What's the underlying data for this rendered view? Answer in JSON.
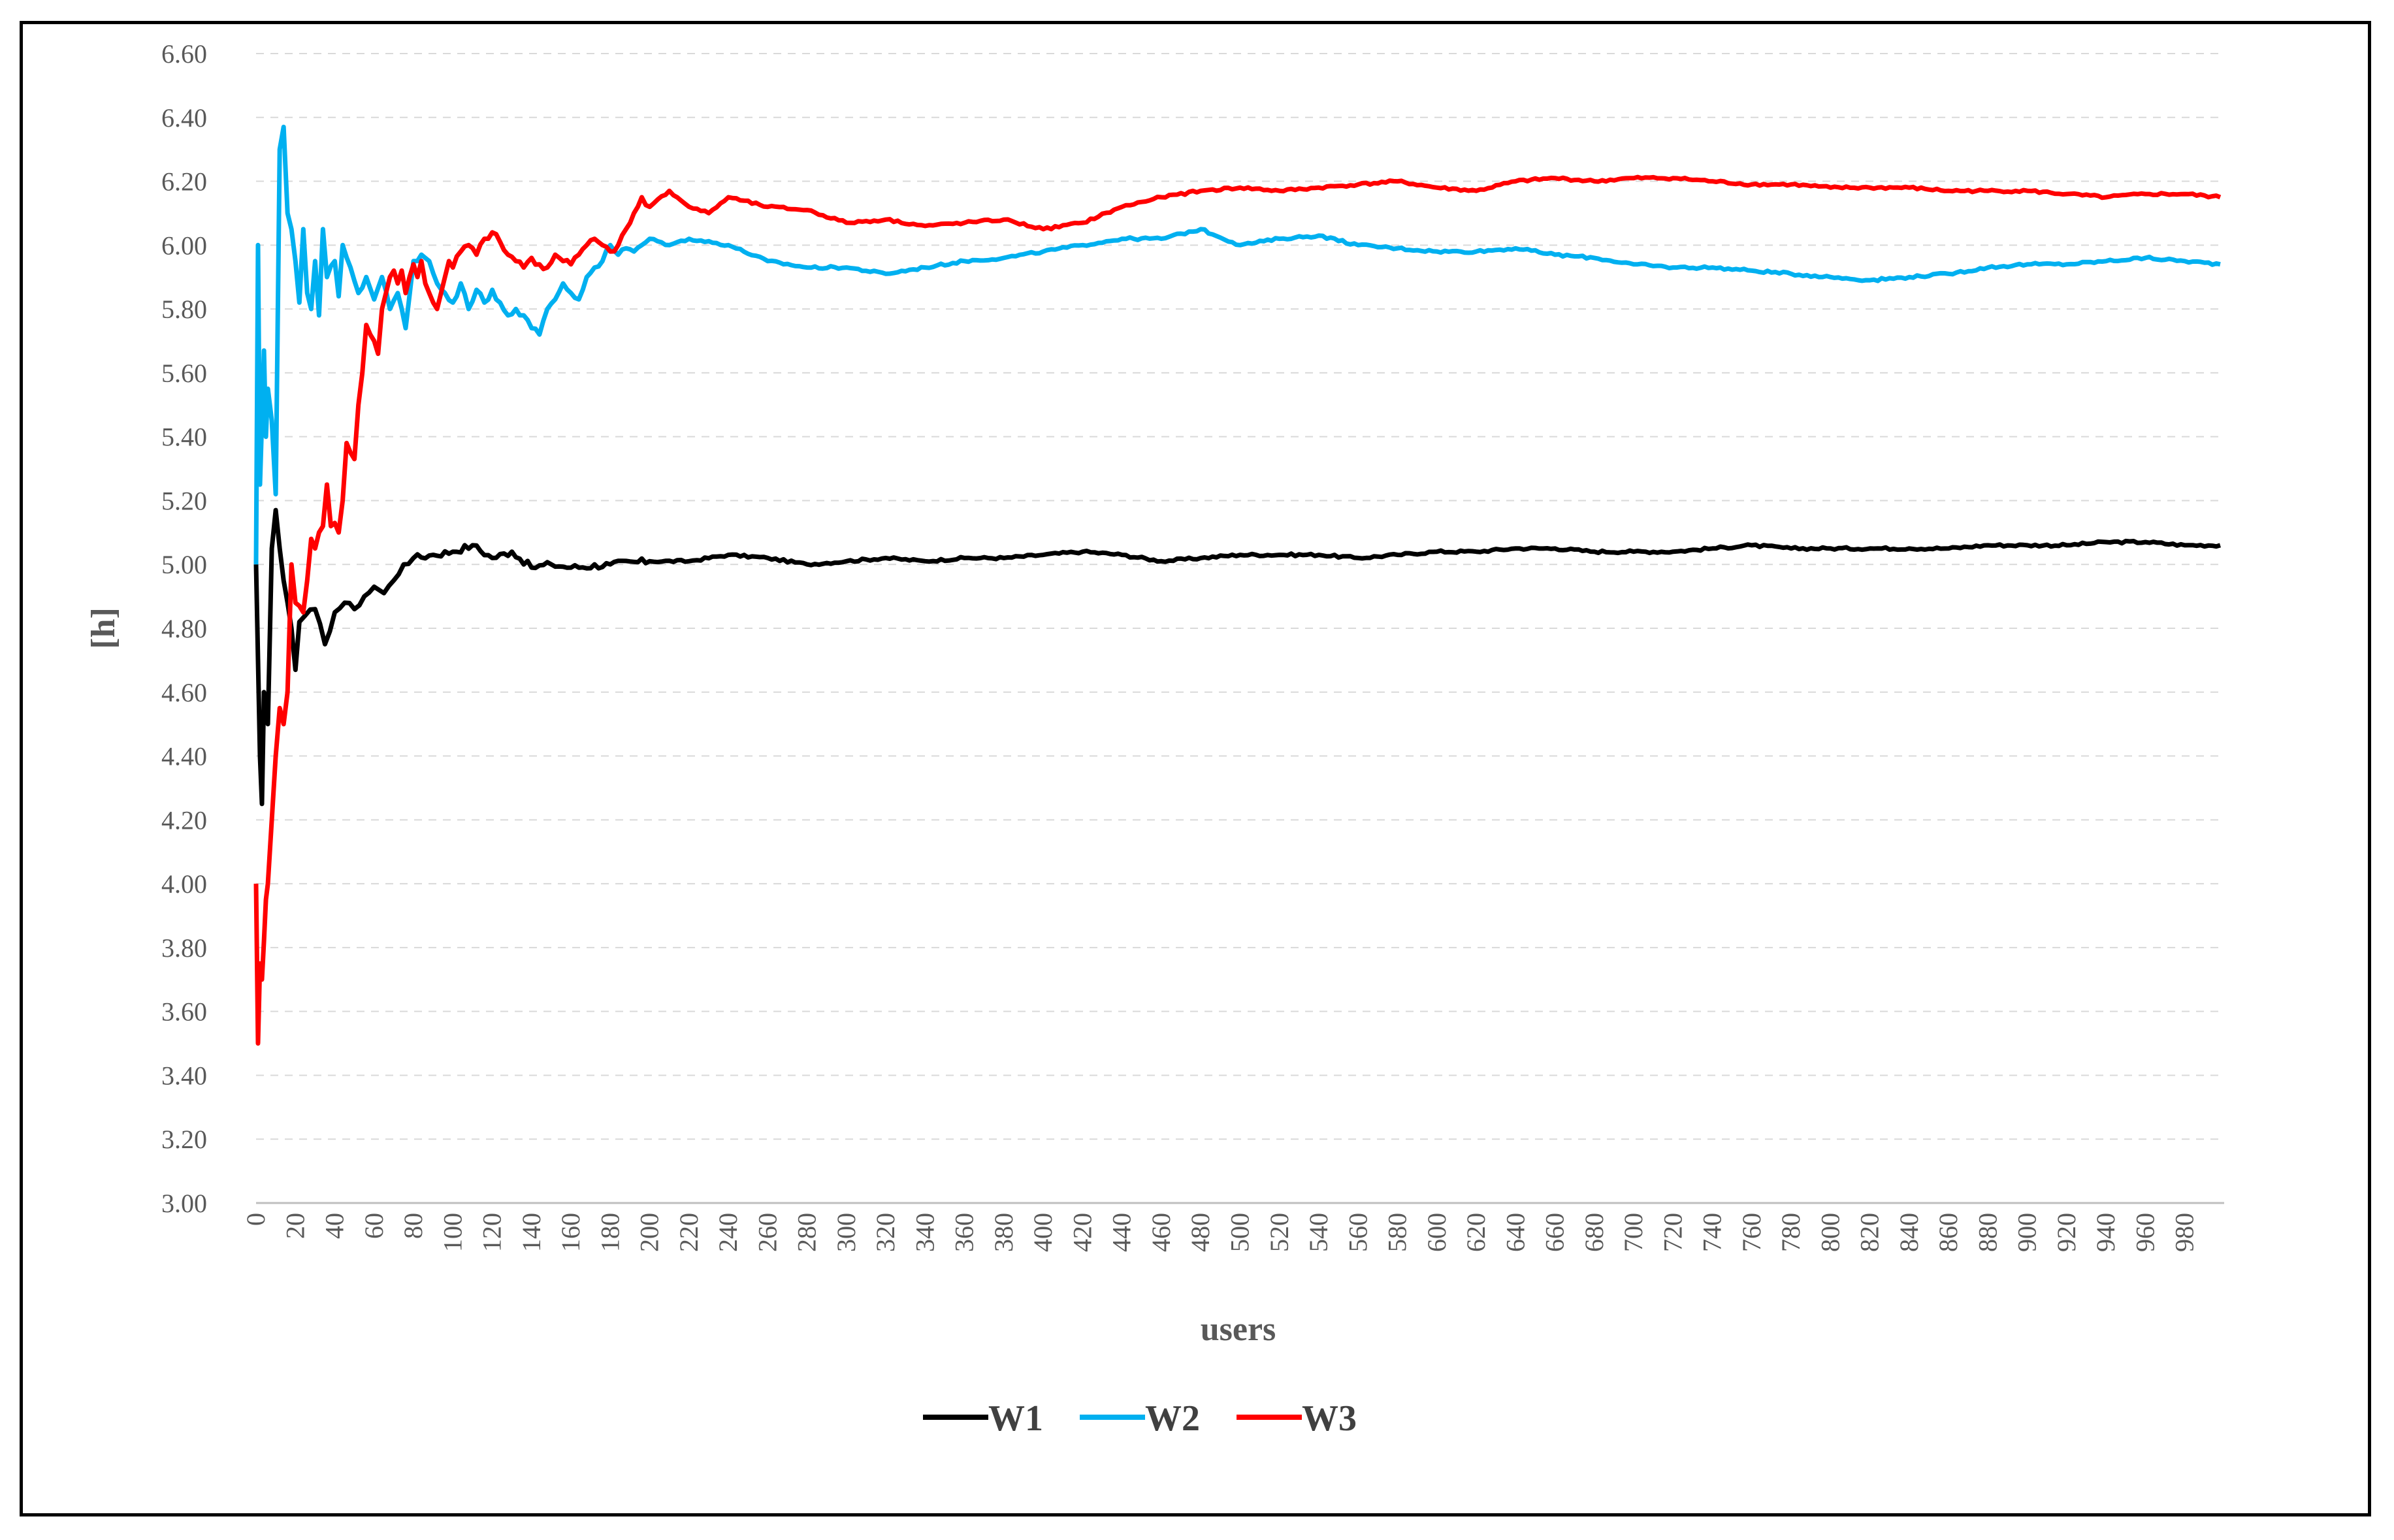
{
  "chart_data": {
    "type": "line",
    "title": "",
    "xlabel": "users",
    "ylabel": "[h]",
    "xlim": [
      0,
      1000
    ],
    "ylim": [
      3.0,
      6.6
    ],
    "yticks": [
      "3.00",
      "3.20",
      "3.40",
      "3.60",
      "3.80",
      "4.00",
      "4.20",
      "4.40",
      "4.60",
      "4.80",
      "5.00",
      "5.20",
      "5.40",
      "5.60",
      "5.80",
      "6.00",
      "6.20",
      "6.40",
      "6.60"
    ],
    "xticks": [
      "0",
      "20",
      "40",
      "60",
      "80",
      "100",
      "120",
      "140",
      "160",
      "180",
      "200",
      "220",
      "240",
      "260",
      "280",
      "300",
      "320",
      "340",
      "360",
      "380",
      "400",
      "420",
      "440",
      "460",
      "480",
      "500",
      "520",
      "540",
      "560",
      "580",
      "600",
      "620",
      "640",
      "660",
      "680",
      "700",
      "720",
      "740",
      "760",
      "780",
      "800",
      "820",
      "840",
      "860",
      "880",
      "900",
      "920",
      "940",
      "960",
      "980"
    ],
    "grid": "horizontal dashed",
    "legend_position": "bottom",
    "series": [
      {
        "name": "W1",
        "color": "#000000",
        "x": [
          0,
          2,
          3,
          4,
          6,
          8,
          10,
          12,
          14,
          16,
          18,
          20,
          22,
          25,
          30,
          35,
          40,
          45,
          50,
          55,
          60,
          65,
          70,
          75,
          80,
          90,
          100,
          110,
          120,
          130,
          140,
          150,
          160,
          180,
          200,
          220,
          240,
          260,
          280,
          300,
          320,
          340,
          360,
          380,
          400,
          420,
          440,
          460,
          480,
          500,
          520,
          540,
          560,
          580,
          600,
          620,
          640,
          660,
          680,
          700,
          720,
          740,
          760,
          780,
          800,
          820,
          840,
          860,
          880,
          900,
          920,
          940,
          960,
          980,
          998
        ],
        "y": [
          5.0,
          4.4,
          4.25,
          4.6,
          4.5,
          5.05,
          5.17,
          5.05,
          4.95,
          4.88,
          4.8,
          4.67,
          4.82,
          4.84,
          4.86,
          4.75,
          4.85,
          4.88,
          4.86,
          4.9,
          4.93,
          4.91,
          4.95,
          5.0,
          5.02,
          5.03,
          5.04,
          5.06,
          5.02,
          5.04,
          4.99,
          5.0,
          4.99,
          5.0,
          5.01,
          5.01,
          5.03,
          5.02,
          5.0,
          5.01,
          5.02,
          5.01,
          5.02,
          5.02,
          5.03,
          5.04,
          5.03,
          5.01,
          5.02,
          5.03,
          5.03,
          5.03,
          5.02,
          5.03,
          5.04,
          5.04,
          5.05,
          5.05,
          5.04,
          5.04,
          5.04,
          5.05,
          5.06,
          5.05,
          5.05,
          5.05,
          5.05,
          5.05,
          5.06,
          5.06,
          5.06,
          5.07,
          5.07,
          5.06,
          5.06
        ]
      },
      {
        "name": "W2",
        "color": "#00B0F0",
        "x": [
          0,
          1,
          2,
          3,
          4,
          5,
          6,
          8,
          10,
          12,
          14,
          16,
          18,
          20,
          22,
          24,
          26,
          28,
          30,
          32,
          34,
          36,
          40,
          42,
          44,
          48,
          52,
          56,
          60,
          64,
          68,
          72,
          76,
          80,
          84,
          88,
          92,
          96,
          100,
          104,
          108,
          112,
          116,
          120,
          124,
          128,
          132,
          136,
          140,
          144,
          148,
          152,
          156,
          160,
          164,
          168,
          172,
          176,
          180,
          184,
          188,
          192,
          196,
          200,
          210,
          220,
          240,
          260,
          280,
          300,
          320,
          340,
          360,
          380,
          400,
          420,
          440,
          460,
          480,
          500,
          520,
          540,
          560,
          580,
          600,
          620,
          640,
          660,
          680,
          700,
          720,
          740,
          760,
          780,
          800,
          820,
          840,
          860,
          880,
          900,
          920,
          940,
          960,
          980,
          998
        ],
        "y": [
          5.0,
          6.0,
          5.25,
          5.45,
          5.67,
          5.4,
          5.55,
          5.45,
          5.22,
          6.3,
          6.37,
          6.1,
          6.05,
          5.95,
          5.82,
          6.05,
          5.85,
          5.8,
          5.95,
          5.78,
          6.05,
          5.9,
          5.95,
          5.84,
          6.0,
          5.93,
          5.85,
          5.9,
          5.83,
          5.9,
          5.8,
          5.85,
          5.74,
          5.95,
          5.97,
          5.95,
          5.88,
          5.85,
          5.82,
          5.88,
          5.8,
          5.86,
          5.82,
          5.86,
          5.82,
          5.78,
          5.8,
          5.78,
          5.74,
          5.72,
          5.8,
          5.83,
          5.88,
          5.85,
          5.83,
          5.9,
          5.93,
          5.95,
          6.0,
          5.97,
          5.99,
          5.98,
          6.0,
          6.02,
          6.0,
          6.02,
          6.0,
          5.95,
          5.93,
          5.93,
          5.91,
          5.93,
          5.95,
          5.96,
          5.98,
          6.0,
          6.02,
          6.02,
          6.05,
          6.0,
          6.02,
          6.03,
          6.0,
          5.99,
          5.98,
          5.98,
          5.99,
          5.97,
          5.96,
          5.94,
          5.93,
          5.93,
          5.92,
          5.91,
          5.9,
          5.89,
          5.9,
          5.91,
          5.93,
          5.94,
          5.94,
          5.95,
          5.96,
          5.95,
          5.94
        ]
      },
      {
        "name": "W3",
        "color": "#FF0000",
        "x": [
          0,
          1,
          2,
          3,
          4,
          5,
          6,
          8,
          10,
          12,
          14,
          16,
          18,
          20,
          22,
          24,
          26,
          28,
          30,
          32,
          34,
          36,
          38,
          40,
          42,
          44,
          46,
          48,
          50,
          52,
          54,
          56,
          58,
          60,
          62,
          64,
          66,
          68,
          70,
          72,
          74,
          76,
          78,
          80,
          82,
          84,
          86,
          88,
          90,
          92,
          94,
          96,
          98,
          100,
          104,
          108,
          112,
          116,
          120,
          124,
          128,
          132,
          136,
          140,
          144,
          148,
          152,
          156,
          160,
          164,
          168,
          172,
          176,
          180,
          184,
          188,
          192,
          196,
          200,
          210,
          220,
          230,
          240,
          260,
          280,
          300,
          320,
          340,
          360,
          380,
          400,
          420,
          440,
          460,
          480,
          500,
          520,
          540,
          560,
          580,
          600,
          620,
          640,
          660,
          680,
          700,
          720,
          740,
          760,
          780,
          800,
          820,
          840,
          860,
          880,
          900,
          920,
          940,
          960,
          980,
          998
        ],
        "y": [
          4.0,
          3.5,
          3.75,
          3.7,
          3.82,
          3.95,
          4.0,
          4.2,
          4.4,
          4.55,
          4.5,
          4.6,
          5.0,
          4.88,
          4.87,
          4.85,
          4.95,
          5.08,
          5.05,
          5.1,
          5.12,
          5.25,
          5.12,
          5.13,
          5.1,
          5.2,
          5.38,
          5.35,
          5.33,
          5.5,
          5.6,
          5.75,
          5.72,
          5.7,
          5.66,
          5.8,
          5.85,
          5.9,
          5.92,
          5.88,
          5.92,
          5.85,
          5.9,
          5.94,
          5.9,
          5.95,
          5.88,
          5.85,
          5.82,
          5.8,
          5.85,
          5.9,
          5.95,
          5.93,
          5.98,
          6.0,
          5.97,
          6.02,
          6.04,
          6.01,
          5.97,
          5.95,
          5.93,
          5.96,
          5.94,
          5.93,
          5.97,
          5.95,
          5.94,
          5.97,
          6.0,
          6.02,
          6.0,
          5.98,
          6.0,
          6.05,
          6.1,
          6.15,
          6.12,
          6.17,
          6.12,
          6.1,
          6.15,
          6.12,
          6.11,
          6.07,
          6.08,
          6.06,
          6.07,
          6.08,
          6.05,
          6.07,
          6.12,
          6.15,
          6.17,
          6.18,
          6.17,
          6.18,
          6.19,
          6.2,
          6.18,
          6.17,
          6.2,
          6.21,
          6.2,
          6.21,
          6.21,
          6.2,
          6.19,
          6.19,
          6.18,
          6.18,
          6.18,
          6.17,
          6.17,
          6.17,
          6.16,
          6.15,
          6.16,
          6.16,
          6.15
        ]
      }
    ]
  }
}
